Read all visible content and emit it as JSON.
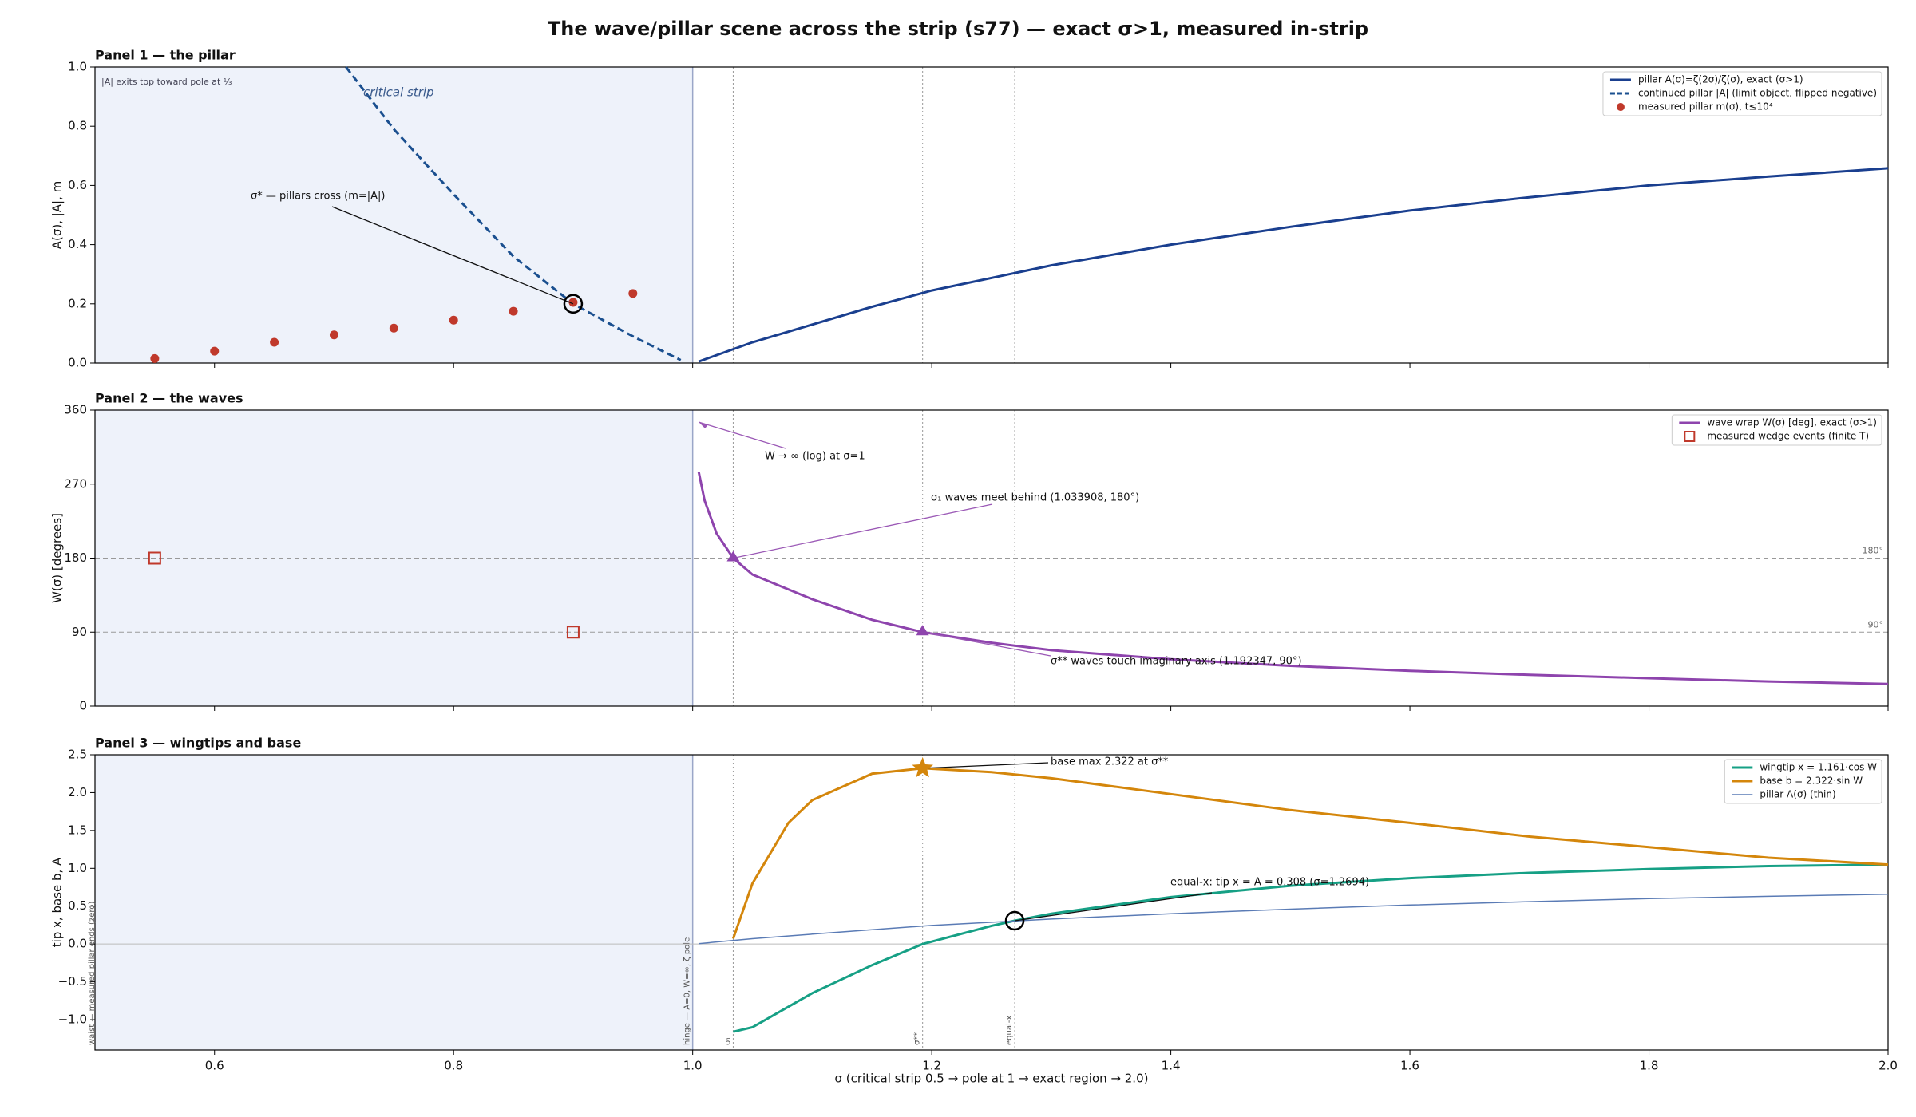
{
  "figure": {
    "title": "The wave/pillar scene across the strip (s77) — exact σ>1, measured in-strip",
    "xlabel": "σ   (critical strip 0.5 → pole at 1 → exact region → 2.0)"
  },
  "chart_data": [
    {
      "type": "line",
      "title": "Panel 1 — the pillar",
      "ylabel": "A(σ),  |A|,  m",
      "xlim": [
        0.5,
        2.0
      ],
      "ylim": [
        0,
        1.0
      ],
      "yticks": [
        {
          "value": 0,
          "label": "0.0"
        },
        {
          "value": 0.2,
          "label": "0.2"
        },
        {
          "value": 0.4,
          "label": "0.4"
        },
        {
          "value": 0.6,
          "label": "0.6"
        },
        {
          "value": 0.8,
          "label": "0.8"
        },
        {
          "value": 1.0,
          "label": "1.0"
        }
      ],
      "shade": [
        0.5,
        1.0
      ],
      "legend": "upper right",
      "series": [
        {
          "name": "pillar A(σ)=ζ(2σ)/ζ(σ), exact (σ>1)",
          "color": "#1a3f8f",
          "style": "solid",
          "x": [
            1.005,
            1.05,
            1.1,
            1.15,
            1.2,
            1.3,
            1.4,
            1.5,
            1.6,
            1.7,
            1.8,
            1.9,
            2.0
          ],
          "values": [
            0.005,
            0.07,
            0.13,
            0.19,
            0.245,
            0.33,
            0.4,
            0.46,
            0.515,
            0.56,
            0.6,
            0.63,
            0.658
          ]
        },
        {
          "name": "continued pillar |A| (limit object, flipped negative)",
          "color": "#1a4f8f",
          "style": "dashed",
          "x": [
            0.71,
            0.75,
            0.8,
            0.85,
            0.9,
            0.95,
            0.99
          ],
          "values": [
            1.0,
            0.79,
            0.57,
            0.36,
            0.2,
            0.09,
            0.01
          ]
        },
        {
          "name": "measured pillar m(σ), t≤10⁴",
          "color": "#c0392b",
          "style": "dots",
          "x": [
            0.55,
            0.6,
            0.65,
            0.7,
            0.75,
            0.8,
            0.85,
            0.9,
            0.95
          ],
          "values": [
            0.015,
            0.04,
            0.07,
            0.095,
            0.118,
            0.145,
            0.175,
            0.205,
            0.235
          ]
        }
      ],
      "annotations": [
        {
          "text": "σ* — pillars cross (m=|A|)",
          "x": 0.9,
          "y": 0.2,
          "marker": "circle"
        },
        {
          "text": "critical strip"
        },
        {
          "text": "|A| exits top toward pole at ⅓"
        }
      ]
    },
    {
      "type": "line",
      "title": "Panel 2 — the waves",
      "ylabel": "W(σ) [degrees]",
      "xlim": [
        0.5,
        2.0
      ],
      "ylim": [
        0,
        360
      ],
      "yticks": [
        0,
        90,
        180,
        270,
        360
      ],
      "shade": [
        0.5,
        1.0
      ],
      "legend": "upper right",
      "hlines": [
        {
          "y": 180,
          "label": "180°"
        },
        {
          "y": 90,
          "label": "90°"
        }
      ],
      "series": [
        {
          "name": "wave wrap W(σ) [deg], exact (σ>1)",
          "color": "#8e44ad",
          "style": "solid",
          "x": [
            1.005,
            1.01,
            1.02,
            1.033908,
            1.05,
            1.1,
            1.15,
            1.192347,
            1.25,
            1.3,
            1.4,
            1.5,
            1.6,
            1.7,
            1.8,
            1.9,
            2.0
          ],
          "values": [
            285,
            250,
            210,
            180,
            160,
            130,
            105,
            90,
            77,
            68,
            57,
            49,
            43,
            38,
            34,
            30,
            27
          ]
        },
        {
          "name": "measured wedge events (finite T)",
          "color": "#c0392b",
          "style": "squares",
          "x": [
            0.55,
            0.9
          ],
          "values": [
            180,
            90
          ]
        }
      ],
      "annotations": [
        {
          "text": "W → ∞ (log) at σ=1"
        },
        {
          "text": "σ₁ waves meet behind (1.033908, 180°)",
          "x": 1.033908,
          "y": 180,
          "marker": "triangle"
        },
        {
          "text": "σ** waves touch imaginary axis (1.192347, 90°)",
          "x": 1.192347,
          "y": 90,
          "marker": "triangle"
        }
      ]
    },
    {
      "type": "line",
      "title": "Panel 3 — wingtips and base",
      "ylabel": "tip x,  base b,  A",
      "xlim": [
        0.5,
        2.0
      ],
      "ylim": [
        -1.4,
        2.5
      ],
      "xticks": [
        {
          "value": 0.6,
          "label": "0.6"
        },
        {
          "value": 0.8,
          "label": "0.8"
        },
        {
          "value": 1.0,
          "label": "1.0"
        },
        {
          "value": 1.2,
          "label": "1.2"
        },
        {
          "value": 1.4,
          "label": "1.4"
        },
        {
          "value": 1.6,
          "label": "1.6"
        },
        {
          "value": 1.8,
          "label": "1.8"
        },
        {
          "value": 2.0,
          "label": "2.0"
        }
      ],
      "yticks": [
        {
          "value": -1.0,
          "label": "−1.0"
        },
        {
          "value": -0.5,
          "label": "−0.5"
        },
        {
          "value": 0,
          "label": "0.0"
        },
        {
          "value": 0.5,
          "label": "0.5"
        },
        {
          "value": 1.0,
          "label": "1.0"
        },
        {
          "value": 1.5,
          "label": "1.5"
        },
        {
          "value": 2.0,
          "label": "2.0"
        },
        {
          "value": 2.5,
          "label": "2.5"
        }
      ],
      "shade": [
        0.5,
        1.0
      ],
      "legend": "upper right",
      "hlines": [
        {
          "y": 0
        }
      ],
      "vlines": [
        {
          "x": 1.0,
          "label": "hinge — A=0, W=∞, ζ pole"
        },
        {
          "x": 1.033908,
          "label": "σ₁"
        },
        {
          "x": 1.192347,
          "label": "σ**"
        },
        {
          "x": 1.2694,
          "label": "equal-x"
        }
      ],
      "series": [
        {
          "name": "wingtip x = 1.161·cos W",
          "color": "#16a085",
          "style": "solid",
          "x": [
            1.033908,
            1.05,
            1.1,
            1.15,
            1.192347,
            1.25,
            1.2694,
            1.3,
            1.4,
            1.5,
            1.6,
            1.7,
            1.8,
            1.9,
            2.0
          ],
          "values": [
            -1.16,
            -1.1,
            -0.65,
            -0.28,
            0.0,
            0.24,
            0.308,
            0.4,
            0.62,
            0.77,
            0.87,
            0.94,
            0.99,
            1.03,
            1.05
          ]
        },
        {
          "name": "base b = 2.322·sin W",
          "color": "#d4860b",
          "style": "solid",
          "x": [
            1.033908,
            1.05,
            1.08,
            1.1,
            1.15,
            1.192347,
            1.25,
            1.3,
            1.4,
            1.5,
            1.6,
            1.7,
            1.8,
            1.9,
            2.0
          ],
          "values": [
            0.07,
            0.8,
            1.6,
            1.9,
            2.25,
            2.322,
            2.27,
            2.19,
            1.98,
            1.77,
            1.6,
            1.42,
            1.28,
            1.14,
            1.05
          ]
        },
        {
          "name": "pillar A(σ) (thin)",
          "color": "#5a7bb5",
          "style": "thin",
          "x": [
            1.005,
            1.05,
            1.1,
            1.15,
            1.2,
            1.3,
            1.4,
            1.5,
            1.6,
            1.7,
            1.8,
            1.9,
            2.0
          ],
          "values": [
            0.005,
            0.07,
            0.13,
            0.19,
            0.245,
            0.33,
            0.4,
            0.46,
            0.515,
            0.56,
            0.6,
            0.63,
            0.658
          ]
        }
      ],
      "annotations": [
        {
          "text": "base max 2.322 at σ**",
          "x": 1.192347,
          "y": 2.322,
          "marker": "star"
        },
        {
          "text": "equal-x: tip x = A = 0.308  (σ=1.2694)",
          "x": 1.2694,
          "y": 0.308,
          "marker": "circle"
        },
        {
          "text": "waist — measured pillar ends (zero)"
        }
      ]
    }
  ]
}
